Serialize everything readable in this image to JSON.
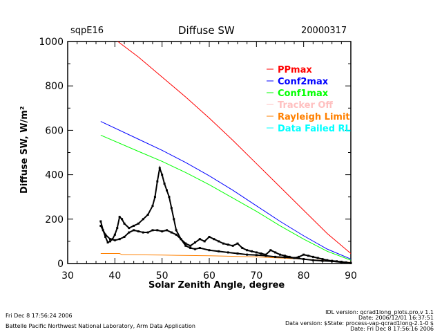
{
  "header": {
    "site": "sqpE16",
    "title": "Diffuse SW",
    "date": "20000317"
  },
  "footer": {
    "left1": "Fri Dec  8 17:56:24 2006",
    "left2": "Battelle Pacific Northwest National Laboratory, Arm Data Application",
    "right1": "IDL version: qcrad1long_plots.pro,v 1.1",
    "right2": "Date: 2006/12/01 16:37:51",
    "right3": "Data version: $State: process-vap-qcrad1long-2.1-0 $",
    "right4": "Date: Fri Dec  8 17:56:16 2006"
  },
  "chart_data": {
    "type": "line",
    "title": "Diffuse SW",
    "xlabel": "Solar Zenith Angle, degree",
    "ylabel": "Diffuse SW, W/m²",
    "xlim": [
      30,
      90
    ],
    "ylim": [
      0,
      1000
    ],
    "xticks": [
      30,
      40,
      50,
      60,
      70,
      80,
      90
    ],
    "yticks": [
      0,
      200,
      400,
      600,
      800,
      1000
    ],
    "legend_position": "right",
    "series": [
      {
        "name": "PPmax",
        "color": "#ff0000",
        "x": [
          40,
          45,
          50,
          55,
          60,
          65,
          70,
          75,
          80,
          85,
          90
        ],
        "y": [
          1010,
          930,
          840,
          750,
          655,
          555,
          450,
          345,
          240,
          135,
          45
        ]
      },
      {
        "name": "Conf2max",
        "color": "#0000ff",
        "x": [
          37,
          45,
          50,
          55,
          60,
          65,
          70,
          75,
          80,
          85,
          90
        ],
        "y": [
          640,
          560,
          510,
          455,
          395,
          330,
          260,
          190,
          125,
          65,
          20
        ]
      },
      {
        "name": "Conf1max",
        "color": "#00ff00",
        "x": [
          37,
          45,
          50,
          55,
          60,
          65,
          70,
          75,
          80,
          85,
          90
        ],
        "y": [
          578,
          505,
          460,
          410,
          355,
          295,
          235,
          170,
          110,
          55,
          15
        ]
      },
      {
        "name": "Tracker Off",
        "color": "#ffc0c0",
        "x": [],
        "y": []
      },
      {
        "name": "Rayleigh Limit",
        "color": "#ff8000",
        "x": [
          37,
          41,
          41.5,
          50,
          60,
          70,
          80,
          90
        ],
        "y": [
          45,
          45,
          40,
          38,
          35,
          30,
          20,
          5
        ]
      },
      {
        "name": "Data Failed RL",
        "color": "#00ffff",
        "x": [],
        "y": []
      }
    ],
    "measured": {
      "color": "#000000",
      "x": [
        37,
        37.5,
        38,
        38.5,
        39,
        39.5,
        40,
        40.5,
        41,
        41.5,
        42,
        43,
        44,
        45,
        46,
        47,
        48,
        48.5,
        49,
        49.5,
        50,
        50.5,
        51,
        51.5,
        52,
        52.5,
        53,
        54,
        55,
        56,
        57,
        58,
        59,
        60,
        61,
        62,
        63,
        64,
        65,
        66,
        67,
        68,
        69,
        70,
        71,
        72,
        73,
        74,
        75,
        76,
        77,
        78,
        79,
        80,
        81,
        82,
        83,
        84,
        85,
        86,
        87,
        88,
        89,
        90
      ],
      "y": [
        190,
        150,
        120,
        95,
        100,
        110,
        130,
        160,
        210,
        200,
        180,
        160,
        170,
        180,
        200,
        220,
        260,
        300,
        370,
        430,
        400,
        360,
        330,
        300,
        250,
        200,
        150,
        110,
        90,
        80,
        95,
        110,
        100,
        120,
        110,
        100,
        90,
        85,
        80,
        90,
        70,
        60,
        55,
        50,
        45,
        40,
        60,
        50,
        40,
        35,
        30,
        25,
        30,
        40,
        35,
        30,
        25,
        20,
        15,
        12,
        10,
        8,
        5,
        2
      ]
    },
    "measured_lower": {
      "color": "#000000",
      "x": [
        37,
        38,
        39,
        40,
        41,
        42,
        43,
        44,
        45,
        46,
        47,
        48,
        49,
        50,
        51,
        52,
        53,
        54,
        55,
        56,
        57,
        58,
        60,
        62,
        64,
        66,
        68,
        70,
        72,
        74,
        76,
        78,
        80,
        82,
        84,
        86,
        88,
        90
      ],
      "y": [
        170,
        130,
        110,
        105,
        110,
        120,
        140,
        150,
        145,
        140,
        140,
        150,
        150,
        145,
        150,
        140,
        130,
        110,
        80,
        70,
        65,
        70,
        60,
        55,
        50,
        45,
        40,
        38,
        35,
        30,
        28,
        25,
        20,
        15,
        12,
        10,
        6,
        2
      ]
    }
  }
}
